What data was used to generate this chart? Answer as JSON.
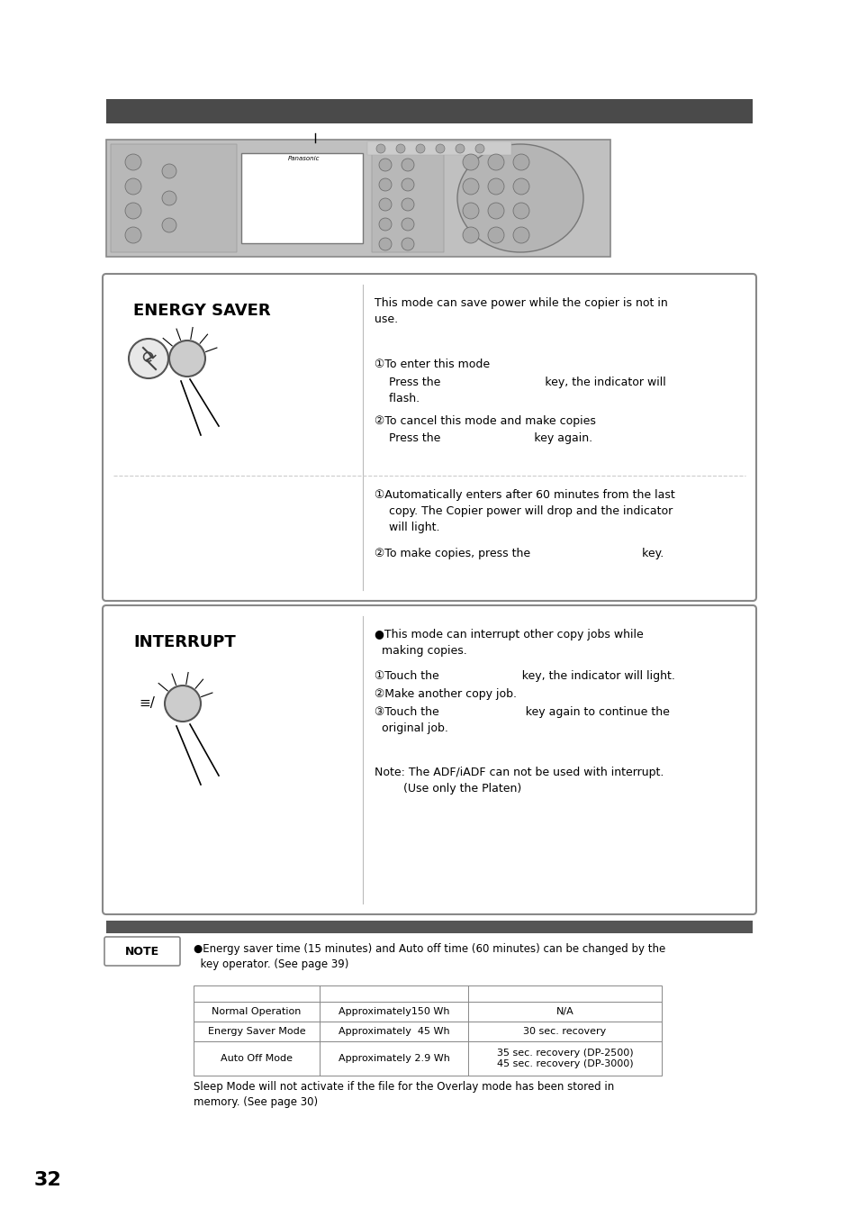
{
  "background_color": "#ffffff",
  "page_number": "32",
  "header_bar_color": "#4a4a4a",
  "bottom_bar_color": "#555555",
  "energy_saver": {
    "title": "ENERGY SAVER",
    "desc1": "This mode can save power while the copier is not in\nuse.",
    "step1_a": "①To enter this mode",
    "step1_b": "    Press the                             key, the indicator will\n    flash.",
    "step1_c": "②To cancel this mode and make copies",
    "step1_d": "    Press the                          key again.",
    "step2_a": "①Automatically enters after 60 minutes from the last\n    copy. The Copier power will drop and the indicator\n    will light.",
    "step2_b": "②To make copies, press the                               key."
  },
  "interrupt": {
    "title": "INTERRUPT",
    "bullet": "●This mode can interrupt other copy jobs while\n  making copies.",
    "step1": "①Touch the                       key, the indicator will light.",
    "step2": "②Make another copy job.",
    "step3": "③Touch the                        key again to continue the\n  original job.",
    "note": "Note: The ADF/iADF can not be used with interrupt.\n        (Use only the Platen)"
  },
  "note_text": "●Energy saver time (15 minutes) and Auto off time (60 minutes) can be changed by the\n  key operator. (See page 39)",
  "table_rows": [
    [
      "",
      "",
      ""
    ],
    [
      "Normal Operation",
      "Approximately150 Wh",
      "N/A"
    ],
    [
      "Energy Saver Mode",
      "Approximately  45 Wh",
      "30 sec. recovery"
    ],
    [
      "Auto Off Mode",
      "Approximately 2.9 Wh",
      "35 sec. recovery (DP-2500)\n45 sec. recovery (DP-3000)"
    ]
  ],
  "footer_text": "Sleep Mode will not activate if the file for the Overlay mode has been stored in\nmemory. (See page 30)"
}
